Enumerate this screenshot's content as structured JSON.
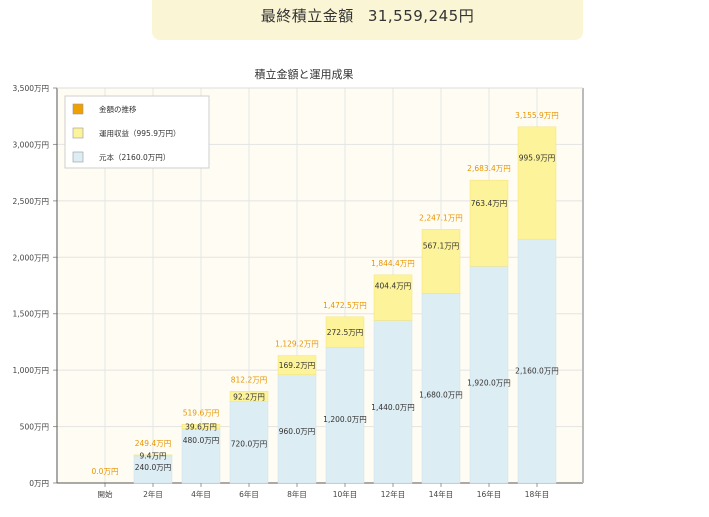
{
  "summary": {
    "label": "最終積立金額",
    "value": "31,559,245円"
  },
  "chart_data": {
    "type": "bar",
    "stacked": true,
    "title": "積立金額と運用成果",
    "xlabel": "",
    "ylabel": "",
    "ylim": [
      0,
      3500
    ],
    "yticks": [
      "0万円",
      "500万円",
      "1,000万円",
      "1,500万円",
      "2,000万円",
      "2,500万円",
      "3,000万円",
      "3,500万円"
    ],
    "grid": true,
    "legend_position": "top-left",
    "legend": [
      {
        "label": "金額の推移",
        "color": "#f0a000"
      },
      {
        "label": "運用収益（995.9万円）",
        "color": "#fdf39b"
      },
      {
        "label": "元本（2160.0万円）",
        "color": "#ddedf4"
      }
    ],
    "categories": [
      "開始",
      "2年目",
      "4年目",
      "6年目",
      "8年目",
      "10年目",
      "12年目",
      "14年目",
      "16年目",
      "18年目"
    ],
    "series": [
      {
        "name": "元本（2160.0万円）",
        "color": "#ddedf4",
        "values": [
          0,
          240,
          480,
          720,
          960,
          1200,
          1440,
          1680,
          1920,
          2160
        ],
        "labels": [
          "",
          "240.0万円",
          "480.0万円",
          "720.0万円",
          "960.0万円",
          "1,200.0万円",
          "1,440.0万円",
          "1,680.0万円",
          "1,920.0万円",
          "2,160.0万円"
        ]
      },
      {
        "name": "運用収益（995.9万円）",
        "color": "#fdf39b",
        "values": [
          0,
          9.4,
          39.6,
          92.2,
          169.2,
          272.5,
          404.4,
          567.1,
          763.4,
          995.9
        ],
        "labels": [
          "",
          "9.4万円",
          "39.6万円",
          "92.2万円",
          "169.2万円",
          "272.5万円",
          "404.4万円",
          "567.1万円",
          "763.4万円",
          "995.9万円"
        ]
      }
    ],
    "totals": {
      "name": "金額の推移",
      "color": "#f0a000",
      "values": [
        0,
        249.4,
        519.6,
        812.2,
        1129.2,
        1472.5,
        1844.4,
        2247.1,
        2683.4,
        3155.9
      ],
      "labels": [
        "0.0万円",
        "249.4万円",
        "519.6万円",
        "812.2万円",
        "1,129.2万円",
        "1,472.5万円",
        "1,844.4万円",
        "2,247.1万円",
        "2,683.4万円",
        "3,155.9万円"
      ]
    }
  }
}
